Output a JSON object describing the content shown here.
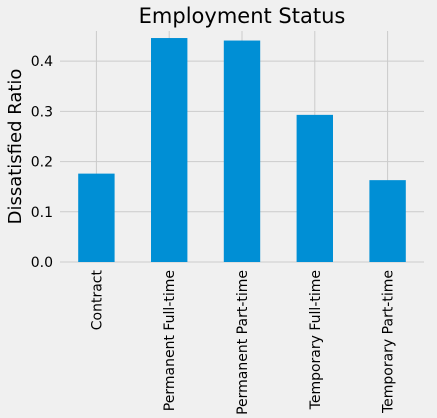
{
  "chart_data": {
    "type": "bar",
    "title": "Employment Status",
    "xlabel": "",
    "ylabel": "Dissatisfied Ratio",
    "categories": [
      "Contract",
      "Permanent Full-time",
      "Permanent Part-time",
      "Temporary Full-time",
      "Temporary Part-time"
    ],
    "values": [
      0.176,
      0.446,
      0.441,
      0.293,
      0.163
    ],
    "ylim": [
      0,
      0.46
    ],
    "yticks": [
      "0.0",
      "0.1",
      "0.2",
      "0.3",
      "0.4"
    ],
    "grid": true,
    "legend": "none",
    "bar_color": "#008fd5",
    "background_color": "#f0f0f0",
    "grid_color": "#cbcbcb"
  }
}
